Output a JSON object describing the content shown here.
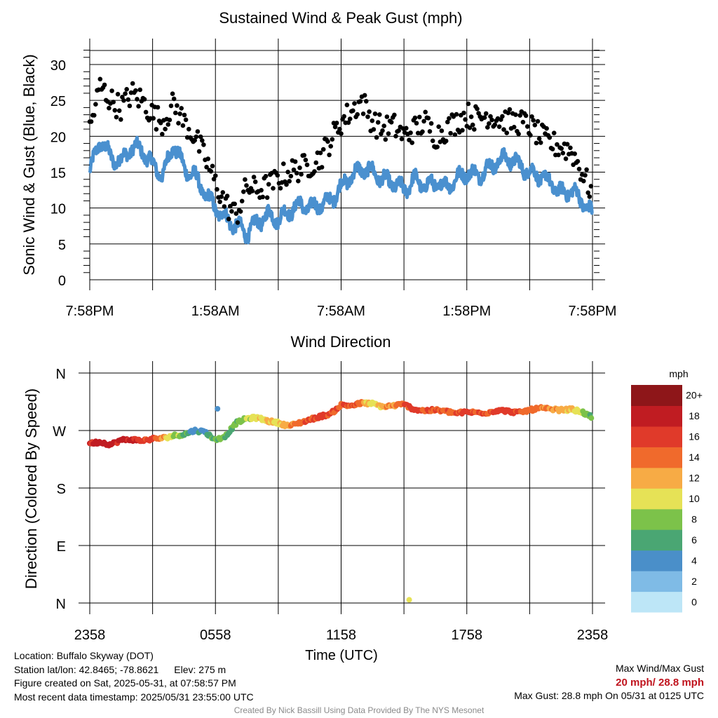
{
  "colors": {
    "wind_line": "#4a90cf",
    "gust_dot": "#000000",
    "legend": [
      "#bde6f7",
      "#7fbbe6",
      "#4a8fc9",
      "#4aa673",
      "#7cc24a",
      "#e6e256",
      "#f7ab45",
      "#f06a2c",
      "#e03a2a",
      "#c01c22",
      "#8e1619"
    ]
  },
  "chart_data": [
    {
      "type": "line",
      "title": "Sustained Wind & Peak Gust (mph)",
      "xlabel": "",
      "ylabel": "Sonic Wind & Gust (Blue, Black)",
      "x_tick_labels": [
        "7:58PM",
        "1:58AM",
        "7:58AM",
        "1:58PM",
        "7:58PM"
      ],
      "ylim": [
        0,
        32
      ],
      "y_ticks": [
        0,
        5,
        10,
        15,
        20,
        25,
        30
      ],
      "grid": true,
      "x_hours": [
        0,
        0.5,
        1,
        1.5,
        2,
        2.5,
        3,
        3.5,
        4,
        4.5,
        5,
        5.5,
        6,
        6.5,
        7,
        7.5,
        8,
        8.5,
        9,
        9.5,
        10,
        10.5,
        11,
        11.5,
        12,
        12.5,
        13,
        13.5,
        14,
        14.5,
        15,
        15.5,
        16,
        16.5,
        17,
        17.5,
        18,
        18.5,
        19,
        19.5,
        20,
        20.5,
        21,
        21.5,
        22,
        22.5,
        23,
        23.5,
        24
      ],
      "series": [
        {
          "name": "Blue",
          "values": [
            15,
            19.5,
            17,
            16.5,
            18.5,
            18,
            16,
            14.5,
            19,
            15.5,
            14.5,
            12,
            10,
            8.5,
            7.5,
            6.5,
            8,
            9,
            8.5,
            9.5,
            10.5,
            10,
            10.5,
            11,
            13,
            14.5,
            15.5,
            15,
            14,
            13.5,
            12.5,
            14,
            13,
            13.5,
            13,
            14,
            15,
            14.5,
            15.5,
            16.5,
            17,
            16,
            15,
            14.5,
            13.5,
            12,
            12.5,
            11,
            9
          ]
        },
        {
          "name": "Black",
          "values": [
            21,
            27,
            25,
            24,
            26,
            25,
            23,
            22,
            24.5,
            22,
            20,
            17,
            13.5,
            10.5,
            9,
            13,
            12.5,
            13,
            14,
            15,
            15.5,
            16,
            17,
            19.5,
            22,
            23.5,
            25,
            22,
            21,
            21.5,
            20,
            21,
            22,
            20,
            21,
            22,
            23,
            22.5,
            23,
            22.5,
            22,
            22,
            21.5,
            20,
            19,
            18.5,
            18,
            15,
            12
          ]
        }
      ]
    },
    {
      "type": "scatter",
      "title": "Wind Direction",
      "xlabel": "Time (UTC)",
      "ylabel": "Direction (Colored By Speed)",
      "x_tick_labels": [
        "2358",
        "0558",
        "1158",
        "1758",
        "2358"
      ],
      "y_tick_labels": [
        "N",
        "E",
        "S",
        "W",
        "N"
      ],
      "ylim": [
        0,
        360
      ],
      "grid": true,
      "legend_title": "mph",
      "legend_labels": [
        "0",
        "2",
        "4",
        "6",
        "8",
        "10",
        "12",
        "14",
        "16",
        "18",
        "20+"
      ],
      "x_hours": [
        0,
        0.5,
        1,
        1.5,
        2,
        2.5,
        3,
        3.5,
        4,
        4.5,
        5,
        5.5,
        6,
        6.5,
        7,
        7.5,
        8,
        8.5,
        9,
        9.5,
        10,
        10.5,
        11,
        11.5,
        12,
        12.5,
        13,
        13.5,
        14,
        14.5,
        15,
        15.5,
        16,
        16.5,
        17,
        17.5,
        18,
        18.5,
        19,
        19.5,
        20,
        20.5,
        21,
        21.5,
        22,
        22.5,
        23,
        23.5,
        24
      ],
      "direction": [
        250,
        252,
        248,
        255,
        256,
        254,
        257,
        258,
        262,
        264,
        270,
        268,
        255,
        262,
        282,
        289,
        290,
        285,
        282,
        277,
        282,
        287,
        292,
        296,
        310,
        309,
        313,
        312,
        307,
        309,
        311,
        303,
        301,
        302,
        300,
        297,
        299,
        298,
        298,
        302,
        300,
        298,
        302,
        305,
        303,
        302,
        303,
        299,
        290
      ],
      "speed_mph": [
        18,
        19,
        18,
        19,
        18,
        17,
        16,
        14,
        10,
        8,
        5,
        6,
        9,
        8,
        8,
        10,
        11,
        12,
        12,
        14,
        15,
        16,
        17,
        16,
        16,
        17,
        14,
        11,
        13,
        14,
        16,
        17,
        16,
        16,
        15,
        16,
        17,
        16,
        16,
        17,
        17,
        16,
        16,
        15,
        14,
        13,
        12,
        10,
        8
      ],
      "outliers": [
        {
          "hour": 6.1,
          "direction": 304,
          "speed_mph": 4
        },
        {
          "hour": 15.25,
          "direction": 5,
          "speed_mph": 10
        }
      ]
    }
  ],
  "info": {
    "location": "Location: Buffalo Skyway (DOT)",
    "latlon": "Station lat/lon: 42.8465; -78.8621",
    "elev": "Elev: 275 m",
    "created": "Figure created on Sat, 2025-05-31, at 07:58:57 PM",
    "recent": "Most recent data timestamp: 2025/05/31 23:55:00 UTC",
    "max_title": "Max Wind/Max Gust",
    "max_values": "20 mph/ 28.8 mph",
    "max_gust": "Max Gust: 28.8 mph On 05/31 at 0125 UTC",
    "credit": "Created By Nick Bassill Using Data Provided By The NYS Mesonet"
  }
}
